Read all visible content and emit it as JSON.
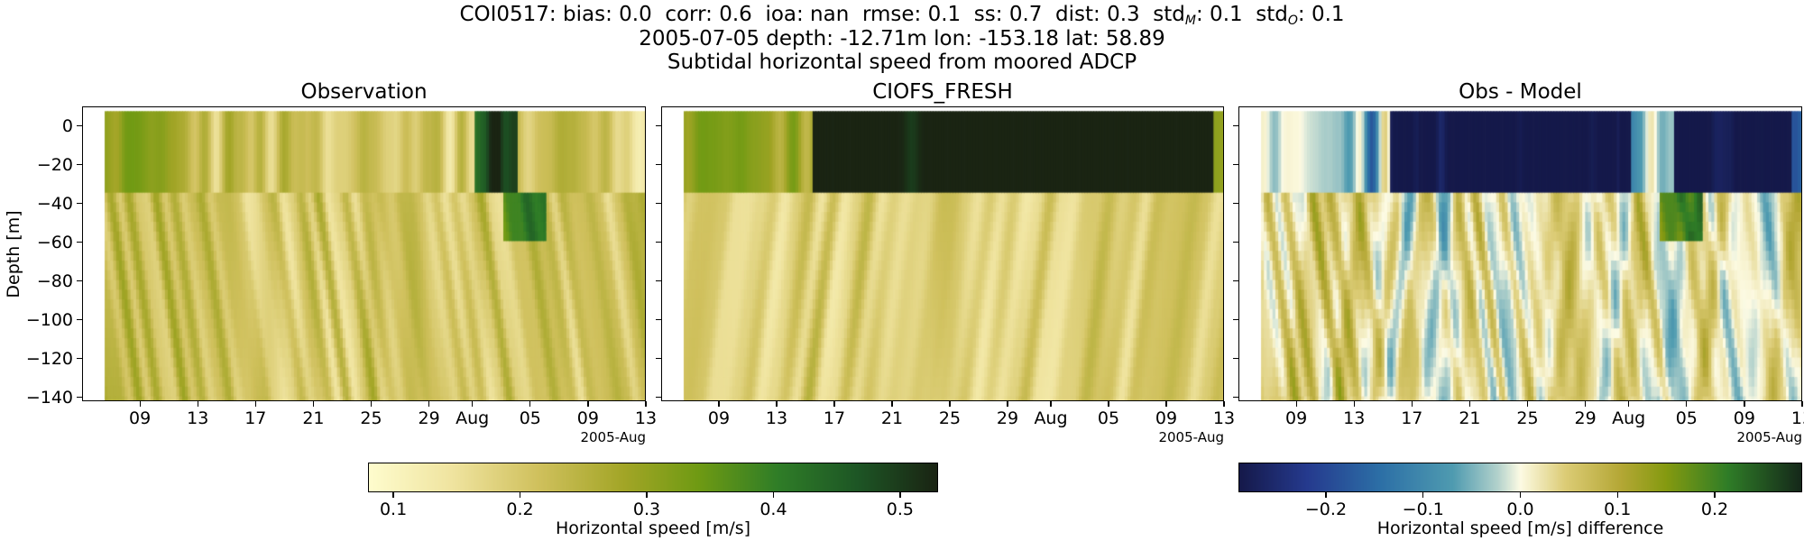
{
  "chart_data": {
    "type": "heatmap",
    "title": {
      "line1_station": "COI0517:",
      "stats": [
        {
          "label": "bias:",
          "value": "0.0"
        },
        {
          "label": "corr:",
          "value": "0.6"
        },
        {
          "label": "ioa:",
          "value": "nan"
        },
        {
          "label": "rmse:",
          "value": "0.1"
        },
        {
          "label": "ss:",
          "value": "0.7"
        },
        {
          "label": "dist:",
          "value": "0.3"
        },
        {
          "label": "std",
          "sub": "M",
          "value": "0.1"
        },
        {
          "label": "std",
          "sub": "O",
          "value": "0.1"
        }
      ],
      "line2": "2005-07-05 depth: -12.71m lon: -153.18 lat: 58.89",
      "line3": "Subtidal horizontal speed from moored ADCP"
    },
    "ylabel": "Depth [m]",
    "ylim": [
      -142,
      10
    ],
    "yticks": [
      "0",
      "−20",
      "−40",
      "−60",
      "−80",
      "−100",
      "−120",
      "−140"
    ],
    "ytick_values": [
      0,
      -20,
      -40,
      -60,
      -80,
      -100,
      -120,
      -140
    ],
    "xlim_days": [
      0,
      39
    ],
    "xticks": [
      "09",
      "13",
      "17",
      "21",
      "25",
      "29",
      "Aug",
      "05",
      "09",
      "13"
    ],
    "xtick_days": [
      4,
      8,
      12,
      16,
      20,
      24,
      27,
      31,
      35,
      39
    ],
    "x_offset_label": "2005-Aug",
    "data_start_day": 1.5,
    "data_end_day": 39.2,
    "panels": [
      {
        "title": "Observation",
        "colormap": "speed",
        "vmin": 0.08,
        "vmax": 0.53
      },
      {
        "title": "CIOFS_FRESH",
        "colormap": "speed",
        "vmin": 0.08,
        "vmax": 0.53
      },
      {
        "title": "Obs - Model",
        "colormap": "diff",
        "vmin": -0.29,
        "vmax": 0.29
      }
    ],
    "colorbars": [
      {
        "label": "Horizontal speed [m/s]",
        "ticks": [
          "0.1",
          "0.2",
          "0.3",
          "0.4",
          "0.5"
        ],
        "tick_values": [
          0.1,
          0.2,
          0.3,
          0.4,
          0.5
        ],
        "vmin": 0.08,
        "vmax": 0.53,
        "colormap": "speed"
      },
      {
        "label": "Horizontal speed [m/s] difference",
        "ticks": [
          "−0.2",
          "−0.1",
          "0.0",
          "0.1",
          "0.2"
        ],
        "tick_values": [
          -0.2,
          -0.1,
          0.0,
          0.1,
          0.2
        ],
        "vmin": -0.29,
        "vmax": 0.29,
        "colormap": "diff"
      }
    ],
    "colors": {
      "speed_low": "#fefccd",
      "speed_mid": "#8a9a0e",
      "speed_high": "#1a2413",
      "diff_neg": "#15194a",
      "diff_zero": "#fdfbe4",
      "diff_pos": "#15291a"
    }
  }
}
